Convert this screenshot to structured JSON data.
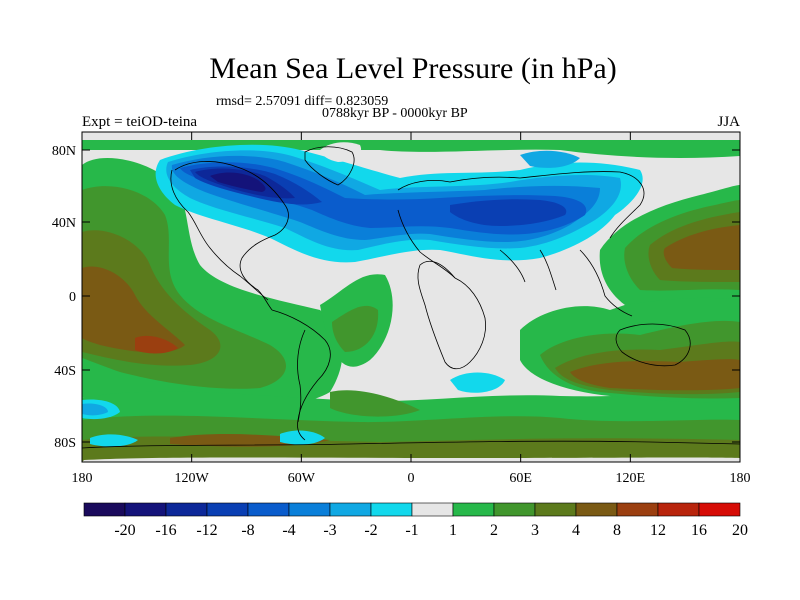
{
  "title": "Mean Sea Level Pressure (in hPa)",
  "stats_line": "rmsd= 2.57091 diff= 0.823059",
  "period_line": "0788kyr BP - 0000kyr BP",
  "experiment_label": "Expt = teiOD-teina",
  "season_label": "JJA",
  "axes": {
    "lat_ticks": [
      "80N",
      "40N",
      "0",
      "40S",
      "80S"
    ],
    "lon_ticks": [
      "180",
      "120W",
      "60W",
      "0",
      "60E",
      "120E",
      "180"
    ]
  },
  "colorbar": {
    "labels": [
      "-20",
      "-16",
      "-12",
      "-8",
      "-4",
      "-3",
      "-2",
      "-1",
      "1",
      "2",
      "3",
      "4",
      "8",
      "12",
      "16",
      "20"
    ],
    "colors": [
      "#1a0a5c",
      "#14137a",
      "#0d2899",
      "#0a3fb3",
      "#0a5ccc",
      "#0a7fd9",
      "#10a8e3",
      "#12d8ec",
      "#e6e6e6",
      "#27b84a",
      "#41962d",
      "#5c7a1c",
      "#7a5a14",
      "#9b3f10",
      "#b8240c",
      "#d60c06"
    ]
  }
}
